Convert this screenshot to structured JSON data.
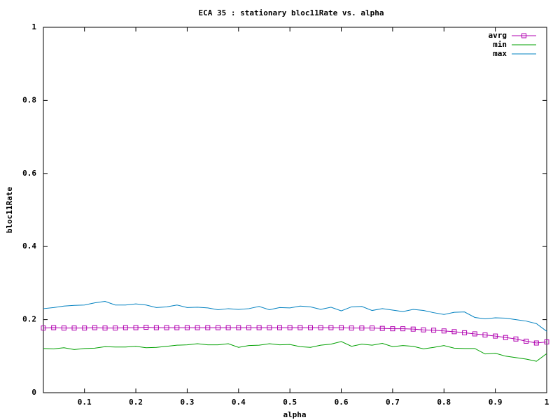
{
  "chart_data": {
    "type": "line",
    "title": "ECA 35 : stationary bloc11Rate vs. alpha",
    "x_label": "alpha",
    "y_label": "bloc11Rate",
    "x": [
      0.02,
      0.04,
      0.06,
      0.08,
      0.1,
      0.12,
      0.14,
      0.16,
      0.18,
      0.2,
      0.22,
      0.24,
      0.26,
      0.28,
      0.3,
      0.32,
      0.34,
      0.36,
      0.38,
      0.4,
      0.42,
      0.44,
      0.46,
      0.48,
      0.5,
      0.52,
      0.54,
      0.56,
      0.58,
      0.6,
      0.62,
      0.64,
      0.66,
      0.68,
      0.7,
      0.72,
      0.74,
      0.76,
      0.78,
      0.8,
      0.82,
      0.84,
      0.86,
      0.88,
      0.9,
      0.92,
      0.94,
      0.96,
      0.98,
      1.0
    ],
    "series": [
      {
        "name": "avrg",
        "color": "#b000b0",
        "marker": "square",
        "values": [
          0.177,
          0.178,
          0.177,
          0.177,
          0.177,
          0.178,
          0.177,
          0.177,
          0.178,
          0.178,
          0.179,
          0.178,
          0.178,
          0.178,
          0.178,
          0.178,
          0.178,
          0.178,
          0.178,
          0.178,
          0.178,
          0.178,
          0.178,
          0.178,
          0.178,
          0.178,
          0.178,
          0.178,
          0.178,
          0.178,
          0.177,
          0.177,
          0.177,
          0.176,
          0.175,
          0.175,
          0.174,
          0.172,
          0.171,
          0.169,
          0.167,
          0.164,
          0.161,
          0.158,
          0.155,
          0.151,
          0.147,
          0.141,
          0.136,
          0.139
        ]
      },
      {
        "name": "min",
        "color": "#00a000",
        "values": [
          0.121,
          0.12,
          0.123,
          0.118,
          0.121,
          0.122,
          0.126,
          0.125,
          0.125,
          0.127,
          0.123,
          0.124,
          0.127,
          0.13,
          0.131,
          0.134,
          0.131,
          0.131,
          0.134,
          0.124,
          0.129,
          0.13,
          0.134,
          0.131,
          0.132,
          0.126,
          0.124,
          0.13,
          0.133,
          0.14,
          0.127,
          0.133,
          0.13,
          0.135,
          0.126,
          0.129,
          0.127,
          0.12,
          0.124,
          0.129,
          0.122,
          0.121,
          0.121,
          0.106,
          0.108,
          0.1,
          0.096,
          0.092,
          0.086,
          0.107
        ]
      },
      {
        "name": "max",
        "color": "#0080c0",
        "values": [
          0.23,
          0.233,
          0.237,
          0.239,
          0.24,
          0.246,
          0.25,
          0.24,
          0.24,
          0.243,
          0.24,
          0.233,
          0.235,
          0.24,
          0.233,
          0.234,
          0.232,
          0.227,
          0.23,
          0.228,
          0.23,
          0.236,
          0.227,
          0.233,
          0.232,
          0.237,
          0.235,
          0.228,
          0.234,
          0.224,
          0.235,
          0.236,
          0.225,
          0.23,
          0.226,
          0.222,
          0.228,
          0.225,
          0.219,
          0.214,
          0.22,
          0.221,
          0.206,
          0.202,
          0.205,
          0.204,
          0.2,
          0.196,
          0.189,
          0.168
        ]
      }
    ],
    "xlim": [
      0.02,
      1
    ],
    "ylim": [
      0,
      1
    ],
    "xticks": [
      0.1,
      0.2,
      0.3,
      0.4,
      0.5,
      0.6,
      0.7,
      0.8,
      0.9,
      1
    ],
    "yticks": [
      0,
      0.2,
      0.4,
      0.6,
      0.8,
      1
    ],
    "legend": "top-right"
  }
}
